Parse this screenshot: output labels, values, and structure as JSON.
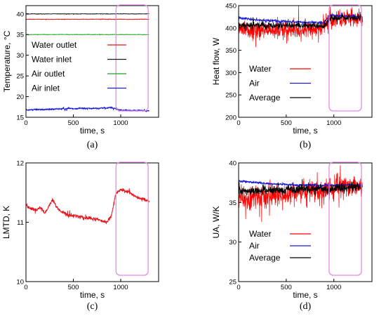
{
  "chart_data": [
    {
      "type": "line",
      "panel_label": "(a)",
      "xlabel": "time, s",
      "ylabel": "Temperature, °C",
      "xlim": [
        0,
        1400
      ],
      "ylim": [
        15,
        42
      ],
      "xticks": [
        0,
        500,
        1000
      ],
      "yticks": [
        15,
        20,
        25,
        30,
        35,
        40
      ],
      "legend_position": "center-left",
      "highlight_region": [
        950,
        1290
      ],
      "series": [
        {
          "name": "Water outlet",
          "color": "#e8141a",
          "mean": 38.7,
          "noise": 0.06,
          "x": [
            0,
            1300
          ]
        },
        {
          "name": "Water inlet",
          "color": "#1a1a1a",
          "mean": 40.0,
          "noise": 0.06,
          "x": [
            0,
            1300
          ]
        },
        {
          "name": "Air outlet",
          "color": "#1aa51a",
          "mean": 35.0,
          "noise": 0.05,
          "x": [
            0,
            1300
          ]
        },
        {
          "name": "Air inlet",
          "color": "#1a1ad8",
          "mean": 17.0,
          "noise": 0.18,
          "x": [
            0,
            1300
          ],
          "trend": [
            [
              0,
              16.8
            ],
            [
              200,
              16.9
            ],
            [
              500,
              17.1
            ],
            [
              800,
              17.2
            ],
            [
              900,
              17.3
            ],
            [
              950,
              17.0
            ],
            [
              1000,
              16.7
            ],
            [
              1300,
              16.6
            ]
          ]
        }
      ]
    },
    {
      "type": "line",
      "panel_label": "(b)",
      "xlabel": "time, s",
      "ylabel": "Heat flow, W",
      "xlim": [
        0,
        1400
      ],
      "ylim": [
        200,
        450
      ],
      "xticks": [
        0,
        500,
        1000
      ],
      "yticks": [
        200,
        250,
        300,
        350,
        400,
        450
      ],
      "legend_position": "center-left",
      "highlight_region": [
        950,
        1290
      ],
      "series": [
        {
          "name": "Water",
          "color": "#ff0000",
          "noise": 16,
          "x": [
            0,
            1300
          ],
          "trend": [
            [
              0,
              395
            ],
            [
              300,
              395
            ],
            [
              600,
              398
            ],
            [
              900,
              400
            ],
            [
              950,
              418
            ],
            [
              1300,
              420
            ]
          ]
        },
        {
          "name": "Air",
          "color": "#1a1ad8",
          "noise": 3,
          "x": [
            0,
            1300
          ],
          "trend": [
            [
              0,
              423
            ],
            [
              200,
              418
            ],
            [
              500,
              414
            ],
            [
              900,
              412
            ],
            [
              950,
              428
            ],
            [
              1300,
              425
            ]
          ]
        },
        {
          "name": "Average",
          "color": "#000000",
          "noise": 6,
          "x": [
            0,
            1300
          ],
          "trend": [
            [
              0,
              408
            ],
            [
              300,
              405
            ],
            [
              600,
              406
            ],
            [
              900,
              405
            ],
            [
              950,
              422
            ],
            [
              1300,
              422
            ]
          ]
        }
      ]
    },
    {
      "type": "line",
      "panel_label": "(c)",
      "xlabel": "time, s",
      "ylabel": "LMTD, K",
      "xlim": [
        0,
        1400
      ],
      "ylim": [
        10,
        12
      ],
      "xticks": [
        0,
        500,
        1000
      ],
      "yticks": [
        10,
        11,
        12
      ],
      "highlight_region": [
        950,
        1290
      ],
      "series": [
        {
          "name": "",
          "color": "#e8141a",
          "noise": 0.025,
          "x": [
            0,
            1300
          ],
          "trend": [
            [
              0,
              11.28
            ],
            [
              100,
              11.2
            ],
            [
              150,
              11.25
            ],
            [
              200,
              11.15
            ],
            [
              280,
              11.38
            ],
            [
              350,
              11.2
            ],
            [
              450,
              11.12
            ],
            [
              600,
              11.08
            ],
            [
              750,
              11.05
            ],
            [
              850,
              11.0
            ],
            [
              900,
              11.1
            ],
            [
              950,
              11.5
            ],
            [
              1000,
              11.55
            ],
            [
              1100,
              11.5
            ],
            [
              1200,
              11.4
            ],
            [
              1300,
              11.35
            ]
          ]
        }
      ]
    },
    {
      "type": "line",
      "panel_label": "(d)",
      "xlabel": "time, s",
      "ylabel": "UA, W/K",
      "xlim": [
        0,
        1400
      ],
      "ylim": [
        25,
        40
      ],
      "xticks": [
        0,
        500,
        1000
      ],
      "yticks": [
        25,
        30,
        35,
        40
      ],
      "legend_position": "bottom-left",
      "highlight_region": [
        950,
        1290
      ],
      "series": [
        {
          "name": "Water",
          "color": "#ff0000",
          "noise": 1.3,
          "x": [
            0,
            1300
          ],
          "trend": [
            [
              0,
              35.3
            ],
            [
              300,
              35.6
            ],
            [
              600,
              36.2
            ],
            [
              900,
              36.3
            ],
            [
              950,
              36.8
            ],
            [
              1300,
              37.0
            ]
          ]
        },
        {
          "name": "Air",
          "color": "#1a1ad8",
          "noise": 0.12,
          "x": [
            0,
            1300
          ],
          "trend": [
            [
              0,
              37.7
            ],
            [
              300,
              37.4
            ],
            [
              600,
              37.2
            ],
            [
              900,
              37.2
            ],
            [
              1300,
              37.2
            ]
          ]
        },
        {
          "name": "Average",
          "color": "#000000",
          "noise": 0.45,
          "x": [
            0,
            1300
          ],
          "trend": [
            [
              0,
              36.5
            ],
            [
              300,
              36.5
            ],
            [
              600,
              36.7
            ],
            [
              900,
              36.7
            ],
            [
              1300,
              37.0
            ]
          ]
        }
      ]
    }
  ]
}
